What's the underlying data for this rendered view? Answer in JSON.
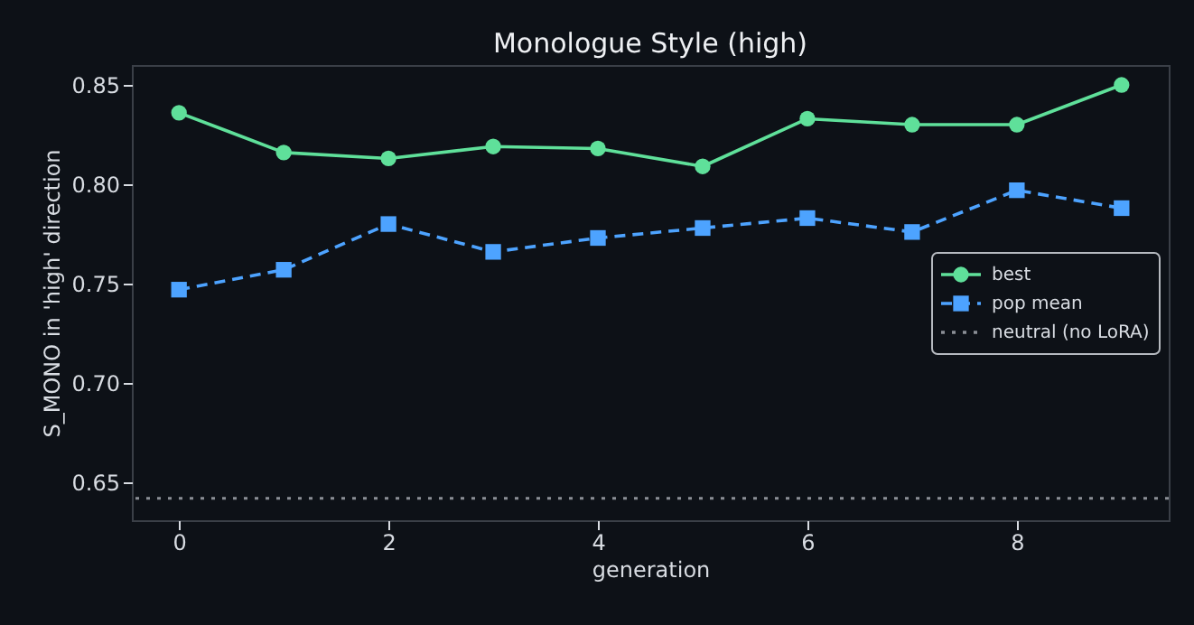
{
  "chart_data": {
    "type": "line",
    "title": "Monologue Style (high)",
    "xlabel": "generation",
    "ylabel": "S_MONO in 'high' direction",
    "x": [
      0,
      1,
      2,
      3,
      4,
      5,
      6,
      7,
      8,
      9
    ],
    "series": [
      {
        "name": "best",
        "color": "#5fe09a",
        "marker": "circle",
        "line_style": "solid",
        "values": [
          0.836,
          0.816,
          0.813,
          0.819,
          0.818,
          0.809,
          0.833,
          0.83,
          0.83,
          0.85
        ]
      },
      {
        "name": "pop mean",
        "color": "#4da3ff",
        "marker": "square",
        "line_style": "dashed",
        "values": [
          0.747,
          0.757,
          0.78,
          0.766,
          0.773,
          0.778,
          0.783,
          0.776,
          0.797,
          0.788
        ]
      }
    ],
    "ref_lines": [
      {
        "axis": "y",
        "value": 0.642,
        "label": "neutral (no LoRA)",
        "color": "#8b8f96",
        "line_style": "dotted"
      }
    ],
    "xlim": [
      -0.45,
      9.45
    ],
    "xticks": [
      0,
      2,
      4,
      6,
      8
    ],
    "ylim": [
      0.631,
      0.86
    ],
    "yticks": [
      0.65,
      {
        "value": 0.7,
        "label": "0.70"
      },
      0.75,
      {
        "value": 0.8,
        "label": "0.80"
      },
      0.85
    ],
    "grid": false,
    "legend": "right"
  }
}
